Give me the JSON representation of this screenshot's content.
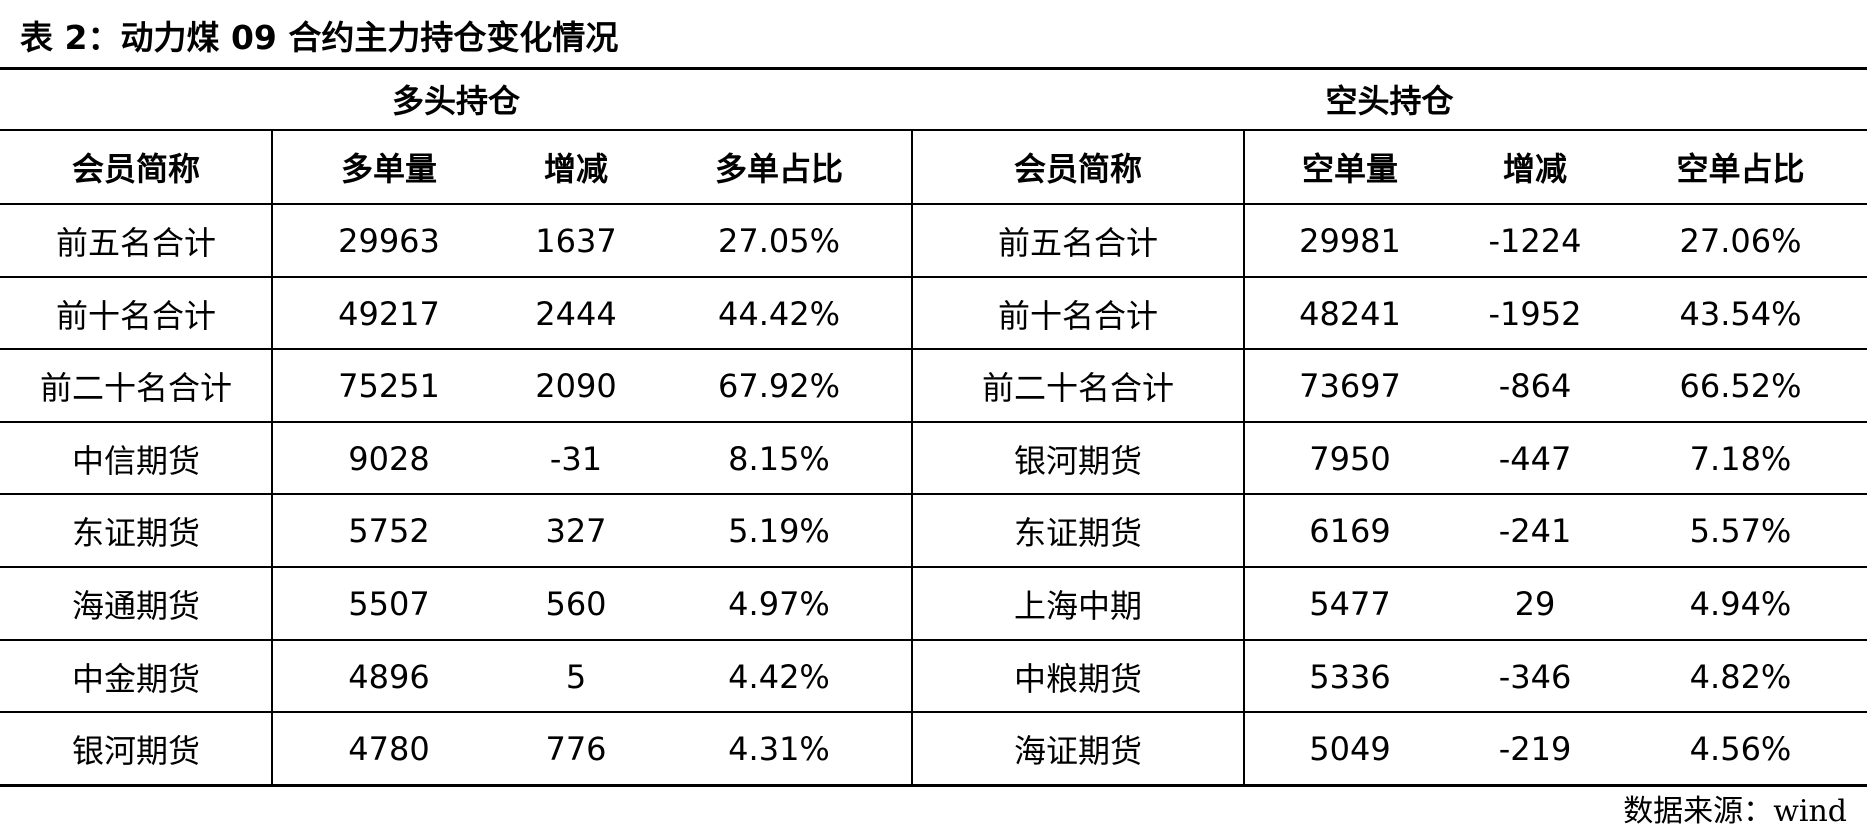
{
  "title": "表 2：动力煤 09 合约主力持仓变化情况",
  "groups": {
    "long": "多头持仓",
    "short": "空头持仓"
  },
  "headers": {
    "long": [
      "会员简称",
      "多单量",
      "增减",
      "多单占比"
    ],
    "short": [
      "会员简称",
      "空单量",
      "增减",
      "空单占比"
    ]
  },
  "rows": [
    [
      "前五名合计",
      "29963",
      "1637",
      "27.05%",
      "前五名合计",
      "29981",
      "-1224",
      "27.06%"
    ],
    [
      "前十名合计",
      "49217",
      "2444",
      "44.42%",
      "前十名合计",
      "48241",
      "-1952",
      "43.54%"
    ],
    [
      "前二十名合计",
      "75251",
      "2090",
      "67.92%",
      "前二十名合计",
      "73697",
      "-864",
      "66.52%"
    ],
    [
      "中信期货",
      "9028",
      "-31",
      "8.15%",
      "银河期货",
      "7950",
      "-447",
      "7.18%"
    ],
    [
      "东证期货",
      "5752",
      "327",
      "5.19%",
      "东证期货",
      "6169",
      "-241",
      "5.57%"
    ],
    [
      "海通期货",
      "5507",
      "560",
      "4.97%",
      "上海中期",
      "5477",
      "29",
      "4.94%"
    ],
    [
      "中金期货",
      "4896",
      "5",
      "4.42%",
      "中粮期货",
      "5336",
      "-346",
      "4.82%"
    ],
    [
      "银河期货",
      "4780",
      "776",
      "4.31%",
      "海证期货",
      "5049",
      "-219",
      "4.56%"
    ]
  ],
  "source": {
    "label": "数据来源：",
    "value": "wind"
  }
}
